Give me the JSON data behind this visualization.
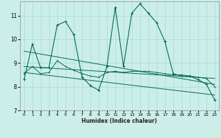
{
  "xlabel": "Humidex (Indice chaleur)",
  "background_color": "#cceee8",
  "grid_color": "#aadddd",
  "line_color": "#006655",
  "xlim": [
    -0.5,
    23.5
  ],
  "ylim": [
    7,
    11.6
  ],
  "yticks": [
    7,
    8,
    9,
    10,
    11
  ],
  "xticks": [
    0,
    1,
    2,
    3,
    4,
    5,
    6,
    7,
    8,
    9,
    10,
    11,
    12,
    13,
    14,
    15,
    16,
    17,
    18,
    19,
    20,
    21,
    22,
    23
  ],
  "series": [
    {
      "x": [
        0,
        1,
        2,
        3,
        4,
        5,
        6,
        7,
        8,
        9,
        10,
        11,
        12,
        13,
        14,
        15,
        16,
        17,
        18,
        19,
        20,
        21,
        22,
        23
      ],
      "y": [
        8.3,
        9.8,
        8.8,
        8.8,
        10.6,
        10.75,
        10.2,
        8.4,
        8.05,
        7.85,
        8.85,
        11.35,
        8.85,
        11.1,
        11.5,
        11.1,
        10.7,
        9.9,
        8.55,
        8.45,
        8.45,
        8.3,
        8.1,
        7.45
      ]
    },
    {
      "x": [
        0,
        1,
        2,
        3,
        4,
        5,
        6,
        7,
        8,
        9,
        10,
        11,
        12,
        13,
        14,
        15,
        16,
        17,
        18,
        19,
        20,
        21,
        22,
        23
      ],
      "y": [
        8.55,
        8.85,
        8.55,
        8.6,
        9.1,
        8.85,
        8.7,
        8.55,
        8.45,
        8.4,
        8.6,
        8.65,
        8.6,
        8.65,
        8.65,
        8.65,
        8.6,
        8.55,
        8.5,
        8.5,
        8.45,
        8.4,
        8.35,
        8.0
      ]
    },
    {
      "x": [
        0,
        23
      ],
      "y": [
        9.5,
        8.1
      ]
    },
    {
      "x": [
        0,
        23
      ],
      "y": [
        8.85,
        8.35
      ]
    },
    {
      "x": [
        0,
        23
      ],
      "y": [
        8.6,
        7.65
      ]
    }
  ]
}
